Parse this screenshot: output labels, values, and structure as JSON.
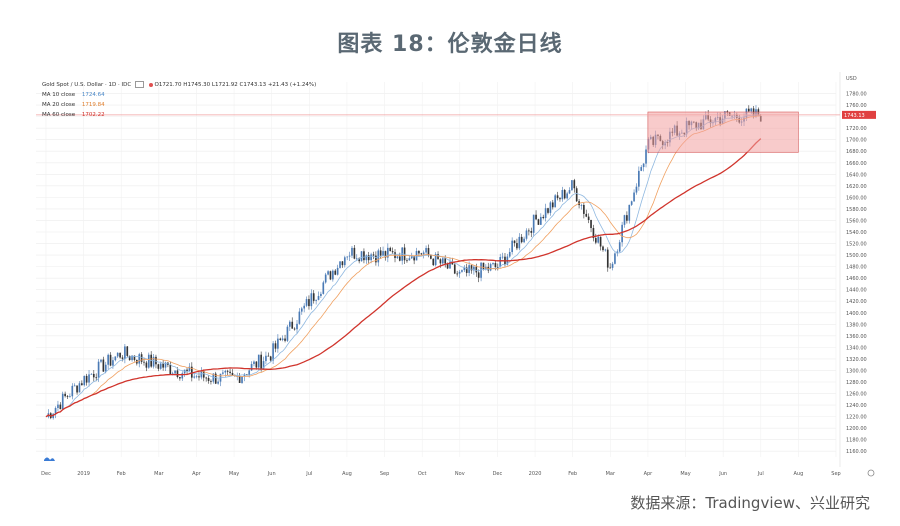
{
  "figure": {
    "title": "图表 18：伦敦金日线",
    "source": "数据来源：Tradingview、兴业研究"
  },
  "legend": {
    "symbol": "Gold Spot / U.S. Dollar · 1D · IDC",
    "ohlc": "O1721.70 H1745.30 L1721.92 C1743.13 +21.43 (+1.24%)",
    "ma10_label": "MA 10 close",
    "ma10_value": "1724.64",
    "ma20_label": "MA 20 close",
    "ma20_value": "1719.84",
    "ma60_label": "MA 60 close",
    "ma60_value": "1702.22"
  },
  "colors": {
    "up": "#4a7ab5",
    "down": "#333333",
    "ma10": "#8fb8e0",
    "ma20": "#f0a060",
    "ma60": "#d0342c",
    "box_fill": "#f2a0a0",
    "box_edge": "#d04040",
    "hline": "#f0a0a0",
    "price_tag": "#e04040"
  },
  "chart_data": {
    "type": "candlestick",
    "currency": "USD",
    "y_ticks": [
      "1780.00",
      "1760.00",
      "1740.00",
      "1720.00",
      "1700.00",
      "1680.00",
      "1660.00",
      "1640.00",
      "1620.00",
      "1600.00",
      "1580.00",
      "1560.00",
      "1540.00",
      "1520.00",
      "1500.00",
      "1480.00",
      "1460.00",
      "1440.00",
      "1420.00",
      "1400.00",
      "1380.00",
      "1360.00",
      "1340.00",
      "1320.00",
      "1300.00",
      "1280.00",
      "1260.00",
      "1240.00",
      "1220.00",
      "1200.00",
      "1180.00",
      "1160.00"
    ],
    "ylim": [
      1150,
      1800
    ],
    "x_ticks": [
      "Dec",
      "2019",
      "Feb",
      "Mar",
      "Apr",
      "May",
      "Jun",
      "Jul",
      "Aug",
      "Sep",
      "Oct",
      "Nov",
      "Dec",
      "2020",
      "Feb",
      "Mar",
      "Apr",
      "May",
      "Jun",
      "Jul",
      "Aug",
      "Sep"
    ],
    "last_price": "1743.13",
    "resistance_level": 1743,
    "range_box": {
      "x_start": "Apr",
      "x_end": "Aug",
      "y_low": 1678,
      "y_high": 1748
    },
    "close_path": [
      {
        "x": "Dec",
        "y": 1220
      },
      {
        "x": "2019",
        "y": 1285
      },
      {
        "x": "Feb",
        "y": 1330
      },
      {
        "x": "Mar",
        "y": 1310
      },
      {
        "x": "Apr",
        "y": 1290
      },
      {
        "x": "May",
        "y": 1285
      },
      {
        "x": "Jun",
        "y": 1330
      },
      {
        "x": "Jul",
        "y": 1420
      },
      {
        "x": "Aug",
        "y": 1505
      },
      {
        "x": "Sep",
        "y": 1500
      },
      {
        "x": "Oct",
        "y": 1505
      },
      {
        "x": "Nov",
        "y": 1465
      },
      {
        "x": "Dec",
        "y": 1480
      },
      {
        "x": "2020",
        "y": 1560
      },
      {
        "x": "Feb",
        "y": 1620
      },
      {
        "x": "Mar",
        "y": 1480
      },
      {
        "x": "Apr",
        "y": 1690
      },
      {
        "x": "May",
        "y": 1720
      },
      {
        "x": "Jun",
        "y": 1740
      },
      {
        "x": "Jul",
        "y": 1743
      }
    ]
  }
}
